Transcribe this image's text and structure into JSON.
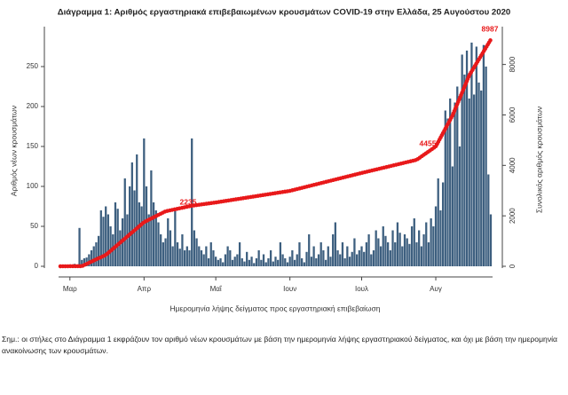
{
  "chart_data": {
    "type": "bar",
    "title": "Διάγραμμα 1: Αριθμός εργαστηριακά επιβεβαιωμένων κρουσμάτων COVID-19 στην Ελλάδα, 25 Αυγούστου 2020",
    "y_label": "Αριθμός νέων κρουσμάτων",
    "y2_label": "Συνολικός αριθμός κρουσμάτων",
    "x_label": "Ημερομηνία λήψης δείγματος προς εργαστηριακή επιβεβαίωση",
    "note": "Σημ.: οι στήλες στο Διάγραμμα 1 εκφράζουν τον αριθμό νέων κρουσμάτων με βάση την ημερομηνία λήψης εργαστηριακού δείγματος, και όχι με βάση την ημερομηνία ανακοίνωσης των κρουσμάτων.",
    "annotations": [
      "2235",
      "4455",
      "8987"
    ],
    "categories": [
      null,
      null,
      null,
      null,
      "Μαρ",
      null,
      null,
      null,
      null,
      null,
      null,
      null,
      null,
      null,
      null,
      null,
      null,
      null,
      null,
      null,
      null,
      null,
      null,
      null,
      null,
      null,
      null,
      null,
      null,
      null,
      null,
      null,
      null,
      null,
      null,
      "Απρ",
      null,
      null,
      null,
      null,
      null,
      null,
      null,
      null,
      null,
      null,
      null,
      null,
      null,
      null,
      null,
      null,
      null,
      null,
      null,
      null,
      null,
      null,
      null,
      null,
      null,
      null,
      null,
      null,
      null,
      "Μαΐ",
      null,
      null,
      null,
      null,
      null,
      null,
      null,
      null,
      null,
      null,
      null,
      null,
      null,
      null,
      null,
      null,
      null,
      null,
      null,
      null,
      null,
      null,
      null,
      null,
      null,
      null,
      null,
      null,
      null,
      null,
      "Ιουν",
      null,
      null,
      null,
      null,
      null,
      null,
      null,
      null,
      null,
      null,
      null,
      null,
      null,
      null,
      null,
      null,
      null,
      null,
      null,
      null,
      null,
      null,
      null,
      null,
      null,
      null,
      null,
      null,
      null,
      "Ιουλ",
      null,
      null,
      null,
      null,
      null,
      null,
      null,
      null,
      null,
      null,
      null,
      null,
      null,
      null,
      null,
      null,
      null,
      null,
      null,
      null,
      null,
      null,
      null,
      null,
      null,
      null,
      null,
      null,
      null,
      null,
      "Αυγ",
      null,
      null,
      null,
      null,
      null,
      null,
      null,
      null,
      null,
      null,
      null,
      null,
      null,
      null,
      null,
      null,
      null,
      null,
      null,
      null,
      null,
      null,
      null
    ],
    "series": [
      {
        "color": "#3d5f7f",
        "values": [
          1,
          1,
          2,
          0,
          2,
          1,
          3,
          2,
          48,
          8,
          10,
          11,
          15,
          20,
          25,
          30,
          38,
          70,
          62,
          75,
          65,
          50,
          40,
          80,
          72,
          45,
          60,
          110,
          65,
          100,
          130,
          95,
          140,
          80,
          75,
          160,
          100,
          65,
          120,
          80,
          70,
          55,
          40,
          30,
          35,
          60,
          45,
          25,
          70,
          30,
          22,
          40,
          20,
          25,
          20,
          160,
          45,
          35,
          25,
          20,
          15,
          25,
          10,
          30,
          20,
          12,
          8,
          10,
          5,
          15,
          25,
          20,
          8,
          12,
          15,
          30,
          10,
          6,
          18,
          8,
          12,
          4,
          10,
          20,
          8,
          15,
          5,
          10,
          20,
          6,
          12,
          8,
          30,
          15,
          10,
          5,
          12,
          20,
          8,
          15,
          30,
          10,
          5,
          18,
          40,
          12,
          25,
          10,
          15,
          30,
          20,
          8,
          25,
          12,
          40,
          55,
          20,
          15,
          30,
          10,
          25,
          12,
          18,
          35,
          15,
          20,
          25,
          18,
          30,
          40,
          15,
          20,
          45,
          35,
          25,
          50,
          38,
          30,
          20,
          45,
          30,
          55,
          42,
          25,
          40,
          35,
          28,
          50,
          60,
          30,
          45,
          25,
          40,
          55,
          30,
          60,
          50,
          75,
          110,
          70,
          105,
          195,
          185,
          210,
          125,
          205,
          225,
          150,
          265,
          240,
          270,
          210,
          280,
          215,
          275,
          230,
          220,
          277,
          250,
          115,
          65
        ]
      },
      {
        "color": "#e8191a",
        "axis": "y2",
        "type": "line",
        "values": [
          0,
          1,
          1,
          2,
          2,
          3,
          3,
          4,
          4,
          5,
          50,
          95,
          140,
          185,
          230,
          275,
          320,
          360,
          405,
          450,
          531,
          612,
          694,
          775,
          856,
          937,
          1019,
          1100,
          1181,
          1263,
          1344,
          1425,
          1506,
          1588,
          1669,
          1750,
          1798,
          1846,
          1893,
          1941,
          1989,
          2037,
          2084,
          2132,
          2180,
          2200,
          2220,
          2240,
          2260,
          2280,
          2300,
          2320,
          2340,
          2360,
          2380,
          2400,
          2413,
          2426,
          2439,
          2452,
          2465,
          2478,
          2491,
          2504,
          2517,
          2530,
          2545,
          2560,
          2575,
          2590,
          2604,
          2619,
          2634,
          2649,
          2664,
          2678,
          2693,
          2708,
          2723,
          2738,
          2753,
          2767,
          2782,
          2797,
          2812,
          2827,
          2842,
          2856,
          2871,
          2886,
          2901,
          2916,
          2931,
          2945,
          2960,
          2975,
          2990,
          3014,
          3037,
          3061,
          3085,
          3108,
          3132,
          3156,
          3179,
          3203,
          3227,
          3250,
          3274,
          3298,
          3321,
          3345,
          3369,
          3392,
          3416,
          3440,
          3463,
          3487,
          3511,
          3534,
          3558,
          3582,
          3605,
          3629,
          3653,
          3676,
          3700,
          3723,
          3745,
          3768,
          3790,
          3813,
          3836,
          3858,
          3881,
          3903,
          3926,
          3949,
          3971,
          3994,
          4016,
          4039,
          4062,
          4084,
          4107,
          4129,
          4152,
          4175,
          4197,
          4220,
          4286,
          4353,
          4419,
          4485,
          4551,
          4618,
          4684,
          4750,
          4926,
          5101,
          5277,
          5453,
          5629,
          5804,
          5980,
          6207,
          6434,
          6661,
          6889,
          7116,
          7343,
          7570,
          7727,
          7885,
          8042,
          8199,
          8357,
          8514,
          8672,
          8829,
          8987
        ]
      }
    ],
    "ylim": [
      0,
      300
    ],
    "yticks": [
      0,
      50,
      100,
      150,
      200,
      250
    ],
    "y2lim": [
      0,
      9500
    ],
    "y2ticks": [
      0,
      2000,
      4000,
      6000,
      8000
    ]
  }
}
